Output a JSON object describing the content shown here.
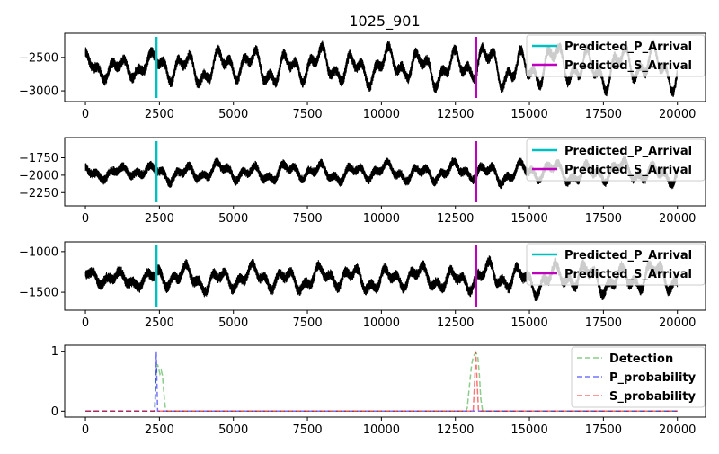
{
  "chart_data": {
    "type": "line",
    "title": "1025_901",
    "panels": [
      {
        "kind": "waveform",
        "xlim": [
          -700,
          20950
        ],
        "ylim": [
          -3160,
          -2140
        ],
        "yticks": [
          -2500,
          -3000
        ],
        "xticks": [
          0,
          2500,
          5000,
          7500,
          10000,
          12500,
          15000,
          17500,
          20000
        ],
        "trace": {
          "n": 20000,
          "mean": -2640,
          "amp": 260,
          "noise": 55,
          "color": "#000000",
          "seed": 11
        },
        "p_arrival": 2400,
        "s_arrival": 13200,
        "legend": [
          "Predicted_P_Arrival",
          "Predicted_S_Arrival"
        ]
      },
      {
        "kind": "waveform",
        "xlim": [
          -700,
          20950
        ],
        "ylim": [
          -2440,
          -1460
        ],
        "yticks": [
          -1750,
          -2000,
          -2250
        ],
        "xticks": [
          0,
          2500,
          5000,
          7500,
          10000,
          12500,
          15000,
          17500,
          20000
        ],
        "trace": {
          "n": 20000,
          "mean": -1960,
          "amp": 130,
          "noise": 45,
          "color": "#000000",
          "seed": 23
        },
        "p_arrival": 2400,
        "s_arrival": 13200,
        "legend": [
          "Predicted_P_Arrival",
          "Predicted_S_Arrival"
        ]
      },
      {
        "kind": "waveform",
        "xlim": [
          -700,
          20950
        ],
        "ylim": [
          -1720,
          -880
        ],
        "yticks": [
          -1000,
          -1500
        ],
        "xticks": [
          0,
          2500,
          5000,
          7500,
          10000,
          12500,
          15000,
          17500,
          20000
        ],
        "trace": {
          "n": 20000,
          "mean": -1330,
          "amp": 150,
          "noise": 45,
          "color": "#000000",
          "seed": 37
        },
        "p_arrival": 2400,
        "s_arrival": 13200,
        "legend": [
          "Predicted_P_Arrival",
          "Predicted_S_Arrival"
        ]
      },
      {
        "kind": "probability",
        "xlim": [
          -700,
          20950
        ],
        "ylim": [
          -0.1,
          1.1
        ],
        "yticks": [
          1,
          0
        ],
        "xticks": [
          0,
          2500,
          5000,
          7500,
          10000,
          12500,
          15000,
          17500,
          20000
        ],
        "series": [
          {
            "name": "Detection",
            "color": "#2ca02c",
            "points": [
              [
                0,
                0
              ],
              [
                2330,
                0
              ],
              [
                2380,
                0.5
              ],
              [
                2410,
                0.72
              ],
              [
                2440,
                0.78
              ],
              [
                2480,
                0.7
              ],
              [
                2520,
                0.62
              ],
              [
                2560,
                0.68
              ],
              [
                2600,
                0.6
              ],
              [
                2650,
                0.3
              ],
              [
                2700,
                0.05
              ],
              [
                2760,
                0
              ],
              [
                12850,
                0
              ],
              [
                12900,
                0.05
              ],
              [
                12950,
                0.3
              ],
              [
                13000,
                0.55
              ],
              [
                13050,
                0.78
              ],
              [
                13100,
                0.9
              ],
              [
                13150,
                0.95
              ],
              [
                13200,
                0.97
              ],
              [
                13260,
                0.9
              ],
              [
                13310,
                0.6
              ],
              [
                13360,
                0.2
              ],
              [
                13420,
                0
              ],
              [
                20000,
                0
              ]
            ]
          },
          {
            "name": "P_probability",
            "color": "#0000ff",
            "points": [
              [
                0,
                0
              ],
              [
                2350,
                0
              ],
              [
                2375,
                0.5
              ],
              [
                2395,
                1.0
              ],
              [
                2415,
                0.5
              ],
              [
                2440,
                0
              ],
              [
                20000,
                0
              ]
            ]
          },
          {
            "name": "S_probability",
            "color": "#ff0000",
            "points": [
              [
                0,
                0
              ],
              [
                13100,
                0
              ],
              [
                13150,
                0.5
              ],
              [
                13190,
                1.0
              ],
              [
                13230,
                0.5
              ],
              [
                13280,
                0
              ],
              [
                20000,
                0
              ]
            ]
          }
        ]
      }
    ]
  },
  "colors": {
    "p_arrival": "#00bfbf",
    "s_arrival": "#bf00bf"
  }
}
